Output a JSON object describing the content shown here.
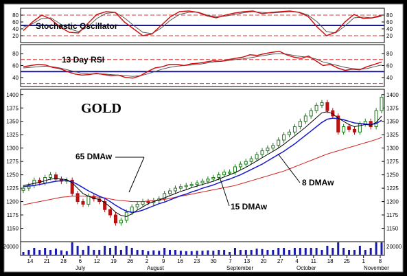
{
  "chart_data": [
    {
      "type": "line",
      "title": "Stochastic Oscillator",
      "y_ticks": [
        20,
        40,
        60,
        80
      ],
      "ylim": [
        0,
        100
      ],
      "reference_lines": [
        {
          "y": 80,
          "style": "dashed",
          "color": "#e03030"
        },
        {
          "y": 50,
          "style": "solid",
          "color": "#1a1a8c"
        },
        {
          "y": 20,
          "style": "dashed",
          "color": "#e03030"
        }
      ],
      "series": [
        {
          "color": "#d01010",
          "values": [
            35,
            60,
            80,
            68,
            45,
            30,
            28,
            55,
            82,
            90,
            88,
            60,
            40,
            20,
            25,
            50,
            75,
            90,
            92,
            88,
            78,
            72,
            80,
            86,
            90,
            92,
            84,
            88,
            90,
            92,
            88,
            76,
            45,
            20,
            30,
            60,
            82,
            70,
            72,
            80
          ]
        },
        {
          "color": "#555555",
          "values": [
            45,
            55,
            70,
            72,
            55,
            40,
            32,
            45,
            70,
            85,
            88,
            72,
            50,
            30,
            26,
            42,
            65,
            82,
            88,
            89,
            80,
            75,
            77,
            82,
            87,
            90,
            88,
            86,
            88,
            90,
            89,
            80,
            60,
            32,
            28,
            48,
            72,
            74,
            72,
            76
          ]
        }
      ]
    },
    {
      "type": "line",
      "title": "13 Day RSI",
      "y_ticks": [
        40,
        60,
        80
      ],
      "ylim": [
        25,
        95
      ],
      "reference_lines": [
        {
          "y": 70,
          "style": "dashed",
          "color": "#e03030"
        },
        {
          "y": 50,
          "style": "solid",
          "color": "#1a1a8c"
        },
        {
          "y": 30,
          "style": "dashed",
          "color": "#e03030"
        }
      ],
      "series": [
        {
          "color": "#d01010",
          "values": [
            58,
            60,
            62,
            61,
            57,
            55,
            50,
            46,
            44,
            45,
            47,
            45,
            43,
            44,
            40,
            39,
            43,
            50,
            56,
            58,
            62,
            62,
            60,
            63,
            64,
            66,
            68,
            67,
            70,
            72,
            74,
            78,
            77,
            80,
            82,
            84,
            78,
            74,
            72,
            76,
            68,
            60,
            62,
            56,
            52,
            54,
            53,
            58,
            62,
            66
          ]
        },
        {
          "color": "#555555",
          "values": [
            56,
            57,
            58,
            59,
            58,
            56,
            53,
            50,
            47,
            46,
            46,
            46,
            45,
            44,
            43,
            42,
            43,
            46,
            50,
            54,
            57,
            59,
            60,
            61,
            62,
            64,
            66,
            67,
            68,
            70,
            71,
            73,
            75,
            77,
            79,
            80,
            79,
            77,
            75,
            74,
            71,
            66,
            63,
            60,
            57,
            55,
            54,
            55,
            58,
            61
          ]
        }
      ]
    },
    {
      "type": "line",
      "title": "GOLD",
      "ylim": [
        1125,
        1410
      ],
      "y_ticks": [
        1150,
        1175,
        1200,
        1225,
        1250,
        1275,
        1300,
        1325,
        1350,
        1375,
        1400
      ],
      "x_tick_labels": [
        "14",
        "21",
        "28",
        "6",
        "12",
        "19",
        "26",
        "2",
        "9",
        "16",
        "23",
        "30",
        "7",
        "13",
        "20",
        "27",
        "4",
        "11",
        "18",
        "25",
        "1",
        "8"
      ],
      "month_labels": [
        "July",
        "August",
        "September",
        "October",
        "November"
      ],
      "annotations": [
        "65 DMAw",
        "8 DMAw",
        "15 DMAw"
      ],
      "volume_tick": "20000",
      "series": [
        {
          "name": "Price",
          "color": "#1a7a1a",
          "values": [
            1225,
            1230,
            1240,
            1235,
            1245,
            1250,
            1242,
            1238,
            1240,
            1215,
            1200,
            1195,
            1210,
            1205,
            1200,
            1185,
            1175,
            1160,
            1165,
            1180,
            1190,
            1195,
            1200,
            1198,
            1202,
            1205,
            1215,
            1220,
            1225,
            1228,
            1230,
            1232,
            1235,
            1238,
            1242,
            1245,
            1250,
            1255,
            1255,
            1265,
            1270,
            1275,
            1280,
            1288,
            1295,
            1300,
            1305,
            1315,
            1325,
            1330,
            1340,
            1350,
            1360,
            1370,
            1380,
            1385,
            1370,
            1360,
            1330,
            1340,
            1335,
            1330,
            1345,
            1350,
            1340,
            1370,
            1395
          ]
        },
        {
          "name": "8 DMAw",
          "color": "#000000",
          "values": [
            1230,
            1232,
            1234,
            1236,
            1239,
            1242,
            1243,
            1242,
            1241,
            1235,
            1225,
            1215,
            1210,
            1206,
            1204,
            1198,
            1190,
            1180,
            1174,
            1172,
            1177,
            1184,
            1190,
            1196,
            1200,
            1203,
            1207,
            1211,
            1215,
            1219,
            1222,
            1226,
            1229,
            1232,
            1235,
            1238,
            1242,
            1246,
            1250,
            1254,
            1259,
            1264,
            1270,
            1276,
            1282,
            1288,
            1294,
            1300,
            1307,
            1315,
            1323,
            1331,
            1339,
            1348,
            1357,
            1366,
            1368,
            1364,
            1356,
            1350,
            1344,
            1340,
            1342,
            1344,
            1343,
            1348,
            1360
          ]
        },
        {
          "name": "15 DMAw",
          "color": "#1a1acc",
          "values": [
            1228,
            1229,
            1230,
            1232,
            1234,
            1236,
            1238,
            1239,
            1239,
            1237,
            1232,
            1226,
            1220,
            1215,
            1210,
            1206,
            1200,
            1193,
            1187,
            1182,
            1180,
            1181,
            1184,
            1188,
            1192,
            1196,
            1199,
            1203,
            1207,
            1211,
            1214,
            1218,
            1221,
            1225,
            1228,
            1231,
            1235,
            1239,
            1242,
            1246,
            1250,
            1255,
            1260,
            1265,
            1270,
            1276,
            1282,
            1288,
            1294,
            1301,
            1308,
            1316,
            1324,
            1332,
            1340,
            1348,
            1354,
            1356,
            1355,
            1353,
            1350,
            1347,
            1346,
            1345,
            1344,
            1346,
            1352
          ]
        },
        {
          "name": "65 DMAw",
          "color": "#d02020",
          "values": [
            1194,
            1196,
            1198,
            1200,
            1202,
            1204,
            1206,
            1208,
            1209,
            1210,
            1210,
            1210,
            1210,
            1209,
            1208,
            1207,
            1205,
            1203,
            1202,
            1201,
            1200,
            1200,
            1200,
            1201,
            1202,
            1203,
            1204,
            1206,
            1208,
            1210,
            1212,
            1214,
            1216,
            1218,
            1220,
            1222,
            1224,
            1226,
            1228,
            1230,
            1233,
            1236,
            1239,
            1242,
            1245,
            1248,
            1251,
            1254,
            1257,
            1261,
            1265,
            1269,
            1273,
            1277,
            1281,
            1285,
            1289,
            1292,
            1295,
            1298,
            1301,
            1304,
            1307,
            1310,
            1313,
            1316,
            1320
          ]
        }
      ]
    }
  ]
}
